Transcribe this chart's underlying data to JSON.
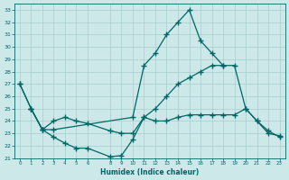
{
  "bg_color": "#cce8e8",
  "grid_color": "#a8cccc",
  "line_color": "#006666",
  "marker": "+",
  "markersize": 4,
  "linewidth": 0.9,
  "xlabel": "Humidex (Indice chaleur)",
  "xlim": [
    -0.5,
    23.5
  ],
  "ylim": [
    21,
    33.5
  ],
  "yticks": [
    21,
    22,
    23,
    24,
    25,
    26,
    27,
    28,
    29,
    30,
    31,
    32,
    33
  ],
  "xticks": [
    0,
    1,
    2,
    3,
    4,
    5,
    6,
    8,
    9,
    10,
    11,
    12,
    13,
    14,
    15,
    16,
    17,
    18,
    19,
    20,
    21,
    22,
    23
  ],
  "line1_x": [
    0,
    1,
    2,
    3,
    10,
    11,
    12,
    13,
    14,
    15,
    16,
    17,
    18
  ],
  "line1_y": [
    27.0,
    25.0,
    23.3,
    23.3,
    24.3,
    28.5,
    29.5,
    31.0,
    32.0,
    33.0,
    30.5,
    29.5,
    28.5
  ],
  "line2_x": [
    0,
    1,
    2,
    3,
    4,
    5,
    6,
    8,
    9,
    10,
    11,
    12,
    13,
    14,
    15,
    16,
    17,
    18,
    19,
    20,
    21,
    22,
    23
  ],
  "line2_y": [
    27.0,
    25.0,
    23.3,
    24.0,
    24.3,
    24.0,
    23.8,
    23.2,
    23.0,
    23.0,
    24.3,
    25.0,
    26.0,
    27.0,
    27.5,
    28.0,
    28.5,
    28.5,
    28.5,
    25.0,
    24.0,
    23.0,
    22.8
  ],
  "line3_x": [
    1,
    2,
    3,
    4,
    5,
    6,
    8,
    9,
    10,
    11,
    12,
    13,
    14,
    15,
    16,
    17,
    18,
    19,
    20,
    21,
    22,
    23
  ],
  "line3_y": [
    25.0,
    23.3,
    22.7,
    22.2,
    21.8,
    21.8,
    21.1,
    21.2,
    22.5,
    24.3,
    24.0,
    24.0,
    24.3,
    24.5,
    24.5,
    24.5,
    24.5,
    24.5,
    25.0,
    24.0,
    23.2,
    22.7
  ]
}
